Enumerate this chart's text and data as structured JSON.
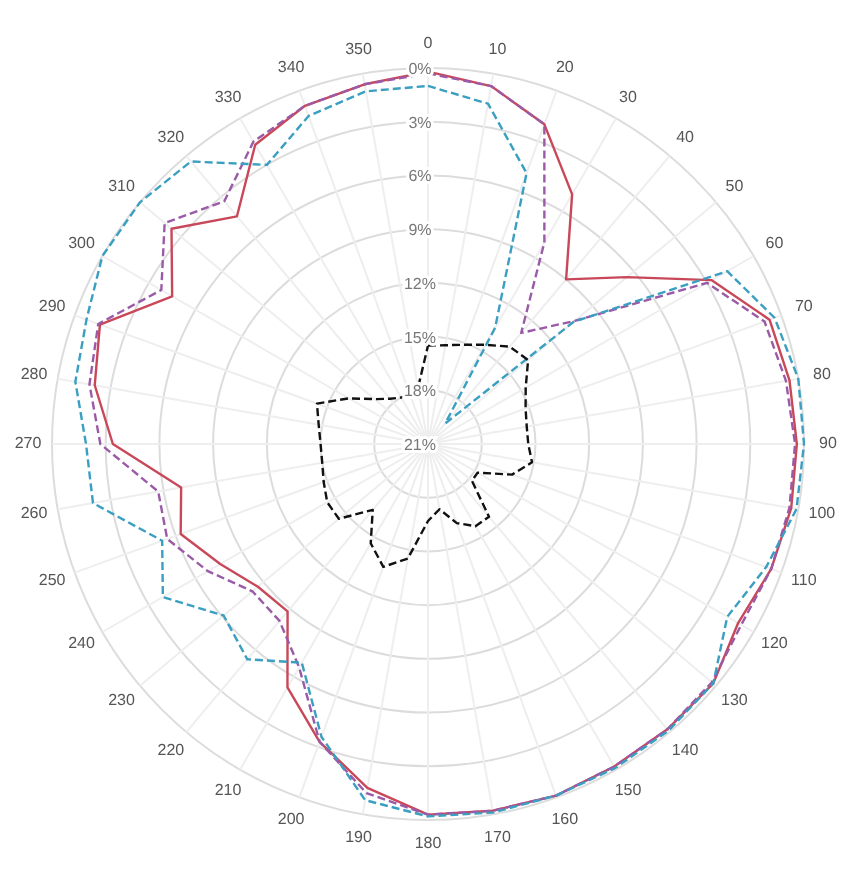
{
  "chart_data": {
    "type": "radar",
    "categories": [
      "0",
      "10",
      "20",
      "30",
      "40",
      "50",
      "60",
      "70",
      "80",
      "90",
      "100",
      "110",
      "120",
      "130",
      "140",
      "150",
      "160",
      "170",
      "180",
      "190",
      "200",
      "210",
      "220",
      "230",
      "240",
      "250",
      "260",
      "270",
      "280",
      "290",
      "300",
      "310",
      "320",
      "330",
      "340",
      "350"
    ],
    "ylim": [
      21,
      0
    ],
    "yticks": [
      {
        "value": 0,
        "label": "0%"
      },
      {
        "value": 3,
        "label": "3%"
      },
      {
        "value": 6,
        "label": "6%"
      },
      {
        "value": 9,
        "label": "9%"
      },
      {
        "value": 12,
        "label": "12%"
      },
      {
        "value": 15,
        "label": "15%"
      },
      {
        "value": 18,
        "label": "18%"
      },
      {
        "value": 21,
        "label": "21%"
      }
    ],
    "grid": true,
    "marker": "none",
    "series": [
      {
        "color": "#c8485a",
        "line_style": "solid",
        "values": [
          0.2,
          0.7,
          2.0,
          4.9,
          9.0,
          6.5,
          2.7,
          0.7,
          0.5,
          0.4,
          0.4,
          0.6,
          1.0,
          0.2,
          0.2,
          0.2,
          0.1,
          0.2,
          0.3,
          1.5,
          3.3,
          5.3,
          8.8,
          8.6,
          7.6,
          6.3,
          7.0,
          3.4,
          2.1,
          1.5,
          4.5,
          2.3,
          4.4,
          1.7,
          0.9,
          0.6
        ]
      },
      {
        "color": "#9a5aa8",
        "line_style": "dashed",
        "values": [
          0.3,
          0.7,
          2.0,
          8.0,
          12.9,
          10.3,
          3.0,
          1.0,
          0.7,
          0.5,
          0.5,
          0.6,
          0.8,
          0.3,
          0.2,
          0.2,
          0.1,
          0.2,
          0.3,
          1.2,
          3.3,
          6.6,
          8.1,
          8.2,
          6.8,
          5.5,
          5.7,
          2.7,
          1.8,
          1.4,
          3.8,
          1.8,
          3.3,
          1.5,
          0.9,
          0.6
        ]
      },
      {
        "color": "#3a9fc0",
        "line_style": "dashed",
        "values": [
          1.0,
          1.7,
          4.9,
          13.5,
          19.5,
          10.4,
          1.7,
          0.4,
          0,
          0,
          0.1,
          0.9,
          1.7,
          0.2,
          0.1,
          0.1,
          0.1,
          0.1,
          0.2,
          0.8,
          3.6,
          6.9,
          5.3,
          6.1,
          3.9,
          5.2,
          2.0,
          1.9,
          1.0,
          0.7,
          0,
          0,
          0.4,
          3.0,
          1.5,
          1.0
        ]
      },
      {
        "color": "#111111",
        "line_style": "dashed",
        "values": [
          15.5,
          15.4,
          15.1,
          14.6,
          13.9,
          13.7,
          14.7,
          15.2,
          15.4,
          15.4,
          15.1,
          16.0,
          17.8,
          17.8,
          15.7,
          15.7,
          16.3,
          17.3,
          16.7,
          14.5,
          13.7,
          14.6,
          16.2,
          14.5,
          14.5,
          14.8,
          15.0,
          15.0,
          14.8,
          14.4,
          15.9,
          17.1,
          17.7,
          18.0,
          18.2,
          17.8
        ]
      }
    ]
  }
}
